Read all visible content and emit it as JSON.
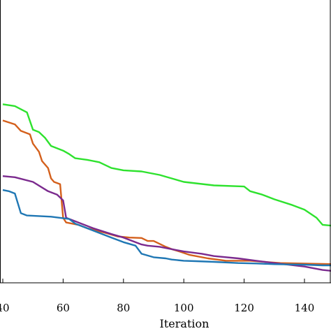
{
  "chart_data": {
    "type": "line",
    "title": "",
    "xlabel": "Iteration",
    "ylabel": "",
    "xlim": [
      40,
      150
    ],
    "ylim": [
      0,
      1
    ],
    "x_ticks": [
      40,
      60,
      80,
      100,
      120,
      140
    ],
    "x_tick_labels": [
      "40",
      "60",
      "80",
      "100",
      "120",
      "140"
    ],
    "grid": false,
    "series": [
      {
        "color": "#2ee22e",
        "points": [
          [
            40,
            0.695
          ],
          [
            44,
            0.687
          ],
          [
            48,
            0.66
          ],
          [
            50,
            0.585
          ],
          [
            52,
            0.575
          ],
          [
            54,
            0.55
          ],
          [
            56,
            0.515
          ],
          [
            60,
            0.495
          ],
          [
            62,
            0.48
          ],
          [
            64,
            0.462
          ],
          [
            68,
            0.455
          ],
          [
            72,
            0.445
          ],
          [
            76,
            0.42
          ],
          [
            80,
            0.41
          ],
          [
            86,
            0.405
          ],
          [
            92,
            0.39
          ],
          [
            96,
            0.375
          ],
          [
            100,
            0.36
          ],
          [
            110,
            0.345
          ],
          [
            120,
            0.34
          ],
          [
            122,
            0.32
          ],
          [
            126,
            0.305
          ],
          [
            130,
            0.285
          ],
          [
            136,
            0.26
          ],
          [
            140,
            0.24
          ],
          [
            144,
            0.205
          ],
          [
            146,
            0.175
          ],
          [
            150,
            0.17
          ]
        ]
      },
      {
        "color": "#d4601c",
        "points": [
          [
            40,
            0.625
          ],
          [
            44,
            0.608
          ],
          [
            46,
            0.58
          ],
          [
            49,
            0.565
          ],
          [
            50,
            0.525
          ],
          [
            52,
            0.49
          ],
          [
            53,
            0.45
          ],
          [
            55,
            0.42
          ],
          [
            56,
            0.375
          ],
          [
            57,
            0.36
          ],
          [
            59,
            0.35
          ],
          [
            60,
            0.205
          ],
          [
            61,
            0.185
          ],
          [
            65,
            0.175
          ],
          [
            68,
            0.16
          ],
          [
            74,
            0.14
          ],
          [
            78,
            0.125
          ],
          [
            82,
            0.12
          ],
          [
            86,
            0.118
          ],
          [
            88,
            0.105
          ],
          [
            90,
            0.105
          ],
          [
            94,
            0.08
          ],
          [
            96,
            0.07
          ],
          [
            99,
            0.058
          ],
          [
            102,
            0.045
          ],
          [
            108,
            0.03
          ],
          [
            114,
            0.02
          ],
          [
            122,
            0.02
          ],
          [
            132,
            0.01
          ],
          [
            150,
            0.005
          ]
        ]
      },
      {
        "color": "#7b2a8e",
        "points": [
          [
            40,
            0.385
          ],
          [
            44,
            0.38
          ],
          [
            50,
            0.36
          ],
          [
            55,
            0.32
          ],
          [
            58,
            0.305
          ],
          [
            60,
            0.28
          ],
          [
            61,
            0.205
          ],
          [
            64,
            0.19
          ],
          [
            70,
            0.16
          ],
          [
            76,
            0.135
          ],
          [
            80,
            0.12
          ],
          [
            86,
            0.09
          ],
          [
            88,
            0.085
          ],
          [
            92,
            0.08
          ],
          [
            96,
            0.07
          ],
          [
            100,
            0.06
          ],
          [
            106,
            0.05
          ],
          [
            110,
            0.04
          ],
          [
            118,
            0.03
          ],
          [
            124,
            0.02
          ],
          [
            130,
            0.01
          ],
          [
            140,
            -0.005
          ],
          [
            146,
            -0.02
          ],
          [
            150,
            -0.025
          ]
        ]
      },
      {
        "color": "#1f77b4",
        "points": [
          [
            40,
            0.325
          ],
          [
            42,
            0.32
          ],
          [
            44,
            0.31
          ],
          [
            46,
            0.225
          ],
          [
            48,
            0.215
          ],
          [
            56,
            0.21
          ],
          [
            62,
            0.2
          ],
          [
            64,
            0.18
          ],
          [
            70,
            0.15
          ],
          [
            76,
            0.12
          ],
          [
            80,
            0.1
          ],
          [
            84,
            0.085
          ],
          [
            86,
            0.05
          ],
          [
            90,
            0.035
          ],
          [
            94,
            0.03
          ],
          [
            96,
            0.025
          ],
          [
            100,
            0.02
          ],
          [
            104,
            0.018
          ],
          [
            110,
            0.015
          ],
          [
            118,
            0.01
          ],
          [
            124,
            0.008
          ],
          [
            130,
            0.005
          ],
          [
            140,
            0.003
          ],
          [
            146,
            0.0
          ],
          [
            150,
            0.0
          ]
        ]
      }
    ]
  }
}
